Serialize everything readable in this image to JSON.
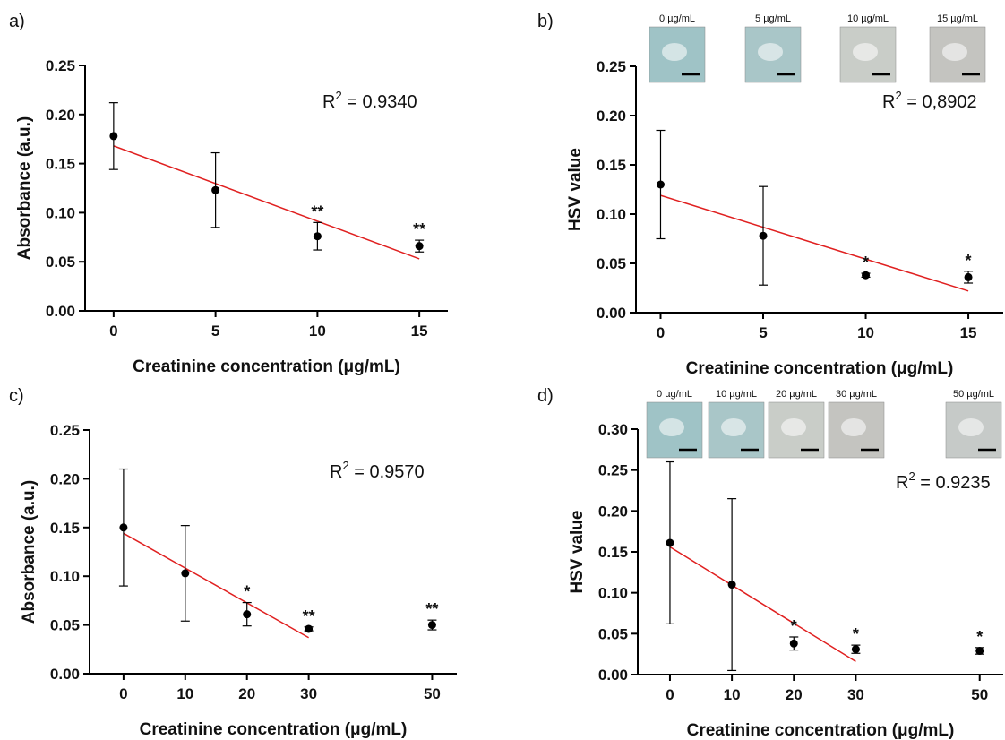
{
  "chart_data": [
    {
      "type": "scatter",
      "panel": "a)",
      "y_label": "Absorbance  (a.u.)",
      "x_label": "Creatinine concentration (μg/mL)",
      "x": [
        0,
        5,
        10,
        15
      ],
      "values": [
        0.178,
        0.123,
        0.076,
        0.066
      ],
      "errors": [
        0.034,
        0.038,
        0.014,
        0.006
      ],
      "significance": [
        null,
        null,
        "**",
        "**"
      ],
      "color": "#000000",
      "fit": {
        "x": [
          0,
          15
        ],
        "y": [
          0.168,
          0.053
        ],
        "color": "#e02020"
      },
      "r2": {
        "base": "R",
        "power": "2",
        "text": " = 0.9340"
      },
      "xlim": [
        -1.4,
        16.4
      ],
      "xticks": [
        0,
        5,
        10,
        15
      ],
      "ylim": [
        0,
        0.25
      ],
      "yticks": [
        {
          "value": 0,
          "label": "0.00"
        },
        {
          "value": 0.05,
          "label": "0.05"
        },
        {
          "value": 0.1,
          "label": "0.10"
        },
        {
          "value": 0.15,
          "label": "0.15"
        },
        {
          "value": 0.2,
          "label": "0.20"
        },
        {
          "value": 0.25,
          "label": "0.25"
        }
      ],
      "images": []
    },
    {
      "type": "scatter",
      "panel": "b)",
      "y_label": "HSV value",
      "x_label": "Creatinine concentration (μg/mL)",
      "x": [
        0,
        5,
        10,
        15
      ],
      "values": [
        0.13,
        0.078,
        0.038,
        0.036
      ],
      "errors": [
        0.055,
        0.05,
        0.002,
        0.006
      ],
      "significance": [
        null,
        null,
        "*",
        "*"
      ],
      "color": "#000000",
      "fit": {
        "x": [
          0,
          15
        ],
        "y": [
          0.119,
          0.022
        ],
        "color": "#e02020"
      },
      "r2": {
        "base": "R",
        "power": "2",
        "text": " = 0,8902"
      },
      "xlim": [
        -1.2,
        16.7
      ],
      "xticks": [
        0,
        5,
        10,
        15
      ],
      "ylim": [
        0,
        0.25
      ],
      "yticks": [
        {
          "value": 0,
          "label": "0.00"
        },
        {
          "value": 0.05,
          "label": "0.05"
        },
        {
          "value": 0.1,
          "label": "0.10"
        },
        {
          "value": 0.15,
          "label": "0.15"
        },
        {
          "value": 0.2,
          "label": "0.20"
        },
        {
          "value": 0.25,
          "label": "0.25"
        }
      ],
      "images": [
        "0 µg/mL",
        "5 µg/mL",
        "10 µg/mL",
        "15 µg/mL"
      ]
    },
    {
      "type": "scatter",
      "panel": "c)",
      "y_label": "Absorbance  (a.u.)",
      "x_label": "Creatinine concentration (μg/mL)",
      "x": [
        0,
        10,
        20,
        30,
        50
      ],
      "values": [
        0.15,
        0.103,
        0.061,
        0.046,
        0.05
      ],
      "errors": [
        0.06,
        0.049,
        0.012,
        0.002,
        0.005
      ],
      "significance": [
        null,
        null,
        "*",
        "**",
        "**"
      ],
      "color": "#000000",
      "fit": {
        "x": [
          0,
          30
        ],
        "y": [
          0.144,
          0.037
        ],
        "color": "#e02020"
      },
      "r2": {
        "base": "R",
        "power": "2",
        "text": " = 0.9570"
      },
      "xlim": [
        -5.5,
        54
      ],
      "xticks": [
        0,
        10,
        20,
        30,
        50
      ],
      "ylim": [
        0,
        0.25
      ],
      "yticks": [
        {
          "value": 0,
          "label": "0.00"
        },
        {
          "value": 0.05,
          "label": "0.05"
        },
        {
          "value": 0.1,
          "label": "0.10"
        },
        {
          "value": 0.15,
          "label": "0.15"
        },
        {
          "value": 0.2,
          "label": "0.20"
        },
        {
          "value": 0.25,
          "label": "0.25"
        }
      ],
      "images": []
    },
    {
      "type": "scatter",
      "panel": "d)",
      "y_label": "HSV value",
      "x_label": "Creatinine concentration (μg/mL)",
      "x": [
        0,
        10,
        20,
        30,
        50
      ],
      "values": [
        0.161,
        0.11,
        0.038,
        0.031,
        0.029
      ],
      "errors": [
        0.099,
        0.105,
        0.008,
        0.005,
        0.004
      ],
      "significance": [
        null,
        null,
        "*",
        "*",
        "*"
      ],
      "color": "#000000",
      "fit": {
        "x": [
          0,
          30
        ],
        "y": [
          0.156,
          0.016
        ],
        "color": "#e02020"
      },
      "r2": {
        "base": "R",
        "power": "2",
        "text": " = 0.9235"
      },
      "xlim": [
        -5.2,
        53.8
      ],
      "xticks": [
        0,
        10,
        20,
        30,
        50
      ],
      "ylim": [
        0,
        0.3
      ],
      "yticks": [
        {
          "value": 0,
          "label": "0.00"
        },
        {
          "value": 0.05,
          "label": "0.05"
        },
        {
          "value": 0.1,
          "label": "0.10"
        },
        {
          "value": 0.15,
          "label": "0.15"
        },
        {
          "value": 0.2,
          "label": "0.20"
        },
        {
          "value": 0.25,
          "label": "0.25"
        },
        {
          "value": 0.3,
          "label": "0.30"
        }
      ],
      "images": [
        "0 µg/mL",
        "10 µg/mL",
        "20 µg/mL",
        "30 µg/mL",
        "50 µg/mL"
      ]
    }
  ]
}
